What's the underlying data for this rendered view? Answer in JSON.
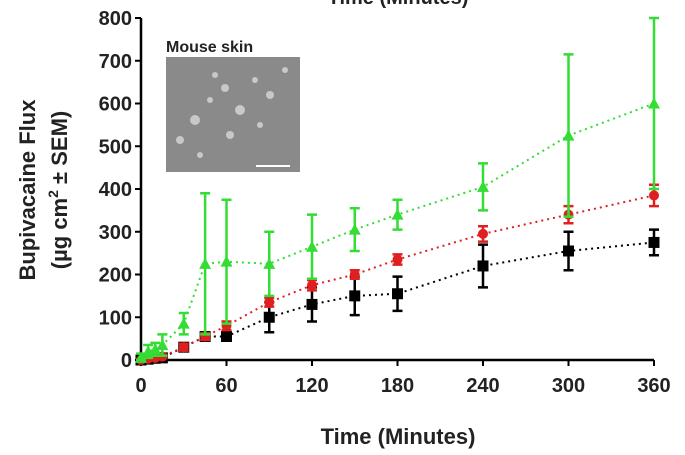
{
  "chart_data": {
    "type": "errorbar-line",
    "top_label": "Time (Minutes)",
    "x_label": "Time (Minutes)",
    "y_label_line1": "Bupivacaine Flux",
    "y_label_line2": {
      "pre": "(µg cm",
      "sup": "2",
      "post": " ± SEM)"
    },
    "inset_label": "Mouse skin",
    "x": [
      0,
      5,
      10,
      15,
      30,
      45,
      60,
      90,
      120,
      150,
      180,
      240,
      300,
      360
    ],
    "xlim": [
      0,
      360
    ],
    "xticks": [
      0,
      60,
      120,
      180,
      240,
      300,
      360
    ],
    "ylim": [
      0,
      800
    ],
    "yticks": [
      0,
      100,
      200,
      300,
      400,
      500,
      600,
      700,
      800
    ],
    "series": [
      {
        "color": "#33dd33",
        "marker": "triangle",
        "values": [
          5,
          20,
          25,
          35,
          85,
          225,
          230,
          225,
          265,
          305,
          340,
          405,
          525,
          600
        ],
        "errors": [
          10,
          15,
          15,
          25,
          25,
          165,
          145,
          75,
          75,
          50,
          35,
          55,
          190,
          200
        ]
      },
      {
        "color": "#e02020",
        "marker": "circle",
        "values": [
          0,
          3,
          5,
          8,
          30,
          55,
          80,
          135,
          175,
          200,
          235,
          295,
          340,
          385
        ],
        "errors": [
          2,
          3,
          3,
          4,
          8,
          8,
          10,
          10,
          12,
          10,
          12,
          18,
          20,
          25
        ]
      },
      {
        "color": "#000000",
        "marker": "square",
        "values": [
          0,
          2,
          4,
          5,
          30,
          55,
          55,
          100,
          130,
          150,
          155,
          220,
          255,
          275
        ],
        "errors": [
          2,
          2,
          2,
          3,
          8,
          8,
          10,
          35,
          40,
          45,
          40,
          50,
          45,
          30
        ]
      }
    ]
  }
}
